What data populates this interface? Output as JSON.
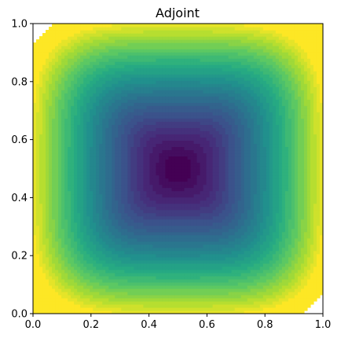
{
  "chart_data": {
    "type": "heatmap",
    "subtype": "filled-contour",
    "title": "Adjoint",
    "xlabel": "",
    "ylabel": "",
    "xlim": [
      0,
      1
    ],
    "ylim": [
      0,
      1
    ],
    "x_ticks": [
      0.0,
      0.2,
      0.4,
      0.6,
      0.8,
      1.0
    ],
    "y_ticks": [
      0.0,
      0.2,
      0.4,
      0.6,
      0.8,
      1.0
    ],
    "x_tick_labels": [
      "0.0",
      "0.2",
      "0.4",
      "0.6",
      "0.8",
      "1.0"
    ],
    "y_tick_labels": [
      "0.0",
      "0.2",
      "0.4",
      "0.6",
      "0.8",
      "1.0"
    ],
    "colormap": "viridis",
    "colormap_stops": [
      "#440154",
      "#472c7a",
      "#3b528b",
      "#2c728e",
      "#21908d",
      "#27ad81",
      "#5cc863",
      "#aadc32",
      "#fde725"
    ],
    "field_minimum_location": [
      0.5,
      0.5
    ],
    "field_maximum_region": "near domain boundary",
    "unfilled_corners": [
      "top-left",
      "bottom-right"
    ],
    "grid": false,
    "legend": "none"
  }
}
